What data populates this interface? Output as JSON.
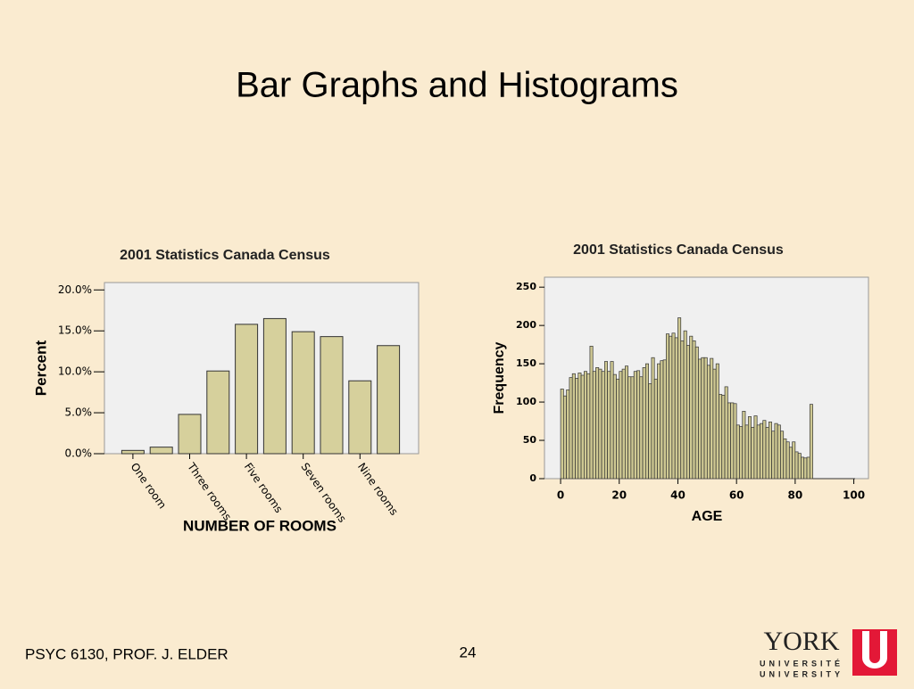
{
  "title": "Bar Graphs and Histograms",
  "footer": {
    "course": "PSYC 6130, PROF. J. ELDER",
    "page": "24"
  },
  "logo": {
    "name": "YORK",
    "line1": "UNIVERSITÉ",
    "line2": "UNIVERSITY"
  },
  "chart_data": [
    {
      "type": "bar",
      "title": "2001 Statistics Canada Census",
      "x_label": "NUMBER OF ROOMS",
      "y_label": "Percent",
      "categories": [
        "One room",
        null,
        "Three rooms",
        null,
        "Five rooms",
        null,
        "Seven rooms",
        null,
        "Nine rooms",
        null
      ],
      "values": [
        0.4,
        0.8,
        4.8,
        10.1,
        15.8,
        16.5,
        14.9,
        14.3,
        8.9,
        13.2
      ],
      "color": "#d6d09c",
      "ylim": [
        0,
        20.9
      ],
      "yticks": [
        {
          "value": 0,
          "label": "0.0%"
        },
        {
          "value": 5,
          "label": "5.0%"
        },
        {
          "value": 10,
          "label": "10.0%"
        },
        {
          "value": 15,
          "label": "15.0%"
        },
        {
          "value": 20,
          "label": "20.0%"
        }
      ]
    },
    {
      "type": "histogram",
      "title": "2001 Statistics Canada Census",
      "x_label": "AGE",
      "y_label": "Frequency",
      "bins": [
        0,
        1,
        2,
        3,
        4,
        5,
        6,
        7,
        8,
        9,
        10,
        11,
        12,
        13,
        14,
        15,
        16,
        17,
        18,
        19,
        20,
        21,
        22,
        23,
        24,
        25,
        26,
        27,
        28,
        29,
        30,
        31,
        32,
        33,
        34,
        35,
        36,
        37,
        38,
        39,
        40,
        41,
        42,
        43,
        44,
        45,
        46,
        47,
        48,
        49,
        50,
        51,
        52,
        53,
        54,
        55,
        56,
        57,
        58,
        59,
        60,
        61,
        62,
        63,
        64,
        65,
        66,
        67,
        68,
        69,
        70,
        71,
        72,
        73,
        74,
        75,
        76,
        77,
        78,
        79,
        80,
        81,
        82,
        83,
        84,
        85,
        86
      ],
      "values": [
        117,
        108,
        116,
        132,
        137,
        131,
        138,
        135,
        140,
        137,
        173,
        140,
        145,
        143,
        140,
        153,
        140,
        153,
        136,
        130,
        140,
        143,
        147,
        133,
        133,
        140,
        141,
        133,
        145,
        150,
        124,
        158,
        130,
        150,
        154,
        155,
        189,
        186,
        190,
        184,
        210,
        180,
        193,
        174,
        186,
        180,
        172,
        156,
        158,
        158,
        148,
        157,
        143,
        150,
        110,
        109,
        120,
        99,
        99,
        98,
        70,
        68,
        88,
        70,
        81,
        67,
        82,
        70,
        72,
        76,
        67,
        74,
        62,
        72,
        70,
        62,
        52,
        48,
        41,
        48,
        35,
        33,
        28,
        27,
        28,
        97
      ],
      "color": "#cfc993",
      "xlim": [
        -5.5,
        105
      ],
      "ylim": [
        0,
        263
      ],
      "xticks": [
        0,
        20,
        40,
        60,
        80,
        100
      ],
      "yticks": [
        0,
        50,
        100,
        150,
        200,
        250
      ]
    }
  ]
}
